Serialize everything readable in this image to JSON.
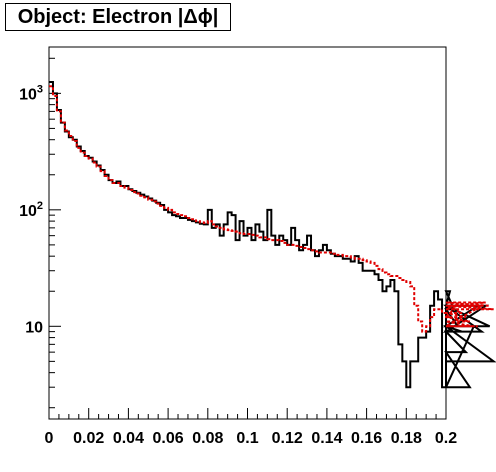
{
  "chart_data": {
    "type": "line",
    "subtype": "step-histogram",
    "title": "Object: Electron |Δϕ|",
    "xlabel": "",
    "ylabel": "",
    "xlim": [
      0,
      0.2
    ],
    "ylim": [
      1.6,
      2500
    ],
    "yscale": "log",
    "grid": false,
    "legend": "none",
    "x_ticks": [
      {
        "value": 0,
        "label": "0"
      },
      {
        "value": 0.02,
        "label": "0.02"
      },
      {
        "value": 0.04,
        "label": "0.04"
      },
      {
        "value": 0.06,
        "label": "0.06"
      },
      {
        "value": 0.08,
        "label": "0.08"
      },
      {
        "value": 0.1,
        "label": "0.1"
      },
      {
        "value": 0.12,
        "label": "0.12"
      },
      {
        "value": 0.14,
        "label": "0.14"
      },
      {
        "value": 0.16,
        "label": "0.16"
      },
      {
        "value": 0.18,
        "label": "0.18"
      },
      {
        "value": 0.2,
        "label": "0.2"
      }
    ],
    "y_ticks": [
      {
        "value": 10,
        "base": "10",
        "exp": ""
      },
      {
        "value": 100,
        "base": "10",
        "exp": "2"
      },
      {
        "value": 1000,
        "base": "10",
        "exp": "3"
      }
    ],
    "bin_width": 0.002,
    "series": [
      {
        "color": "#000000",
        "style": "solid",
        "values": [
          1250,
          1000,
          720,
          560,
          470,
          420,
          400,
          350,
          320,
          290,
          280,
          260,
          240,
          220,
          200,
          180,
          170,
          175,
          160,
          160,
          150,
          145,
          140,
          135,
          130,
          125,
          120,
          115,
          110,
          100,
          95,
          90,
          88,
          85,
          85,
          82,
          80,
          78,
          76,
          75,
          100,
          70,
          75,
          60,
          75,
          95,
          90,
          55,
          80,
          60,
          70,
          55,
          75,
          65,
          55,
          100,
          60,
          50,
          60,
          55,
          50,
          70,
          55,
          45,
          50,
          60,
          45,
          40,
          45,
          50,
          45,
          42,
          40,
          40,
          38,
          38,
          36,
          40,
          35,
          30,
          30,
          30,
          28,
          25,
          20,
          22,
          25,
          20,
          7,
          5,
          3,
          5,
          5,
          8,
          8,
          9,
          15,
          20,
          17,
          3,
          15,
          20,
          14,
          10,
          9,
          6,
          3,
          10,
          15,
          9,
          15,
          10,
          5
        ]
      },
      {
        "color": "#e00000",
        "style": "dashed",
        "values": [
          1150,
          950,
          700,
          560,
          480,
          430,
          390,
          340,
          310,
          290,
          275,
          255,
          235,
          215,
          195,
          180,
          170,
          170,
          160,
          155,
          148,
          142,
          138,
          132,
          128,
          122,
          118,
          113,
          108,
          104,
          100,
          95,
          92,
          90,
          88,
          85,
          83,
          80,
          78,
          77,
          80,
          75,
          72,
          70,
          68,
          67,
          66,
          65,
          63,
          62,
          62,
          61,
          60,
          58,
          58,
          56,
          55,
          55,
          54,
          52,
          50,
          50,
          49,
          48,
          47,
          46,
          45,
          44,
          43,
          43,
          43,
          42,
          41,
          41,
          40,
          40,
          39,
          38,
          38,
          37,
          36,
          35,
          33,
          31,
          29,
          28,
          27,
          27,
          26,
          25,
          24,
          22,
          15,
          11,
          9,
          10,
          12,
          14,
          14,
          13,
          12,
          12,
          14,
          15,
          13,
          12,
          11,
          10,
          10,
          15,
          16,
          15,
          14
        ]
      }
    ]
  }
}
